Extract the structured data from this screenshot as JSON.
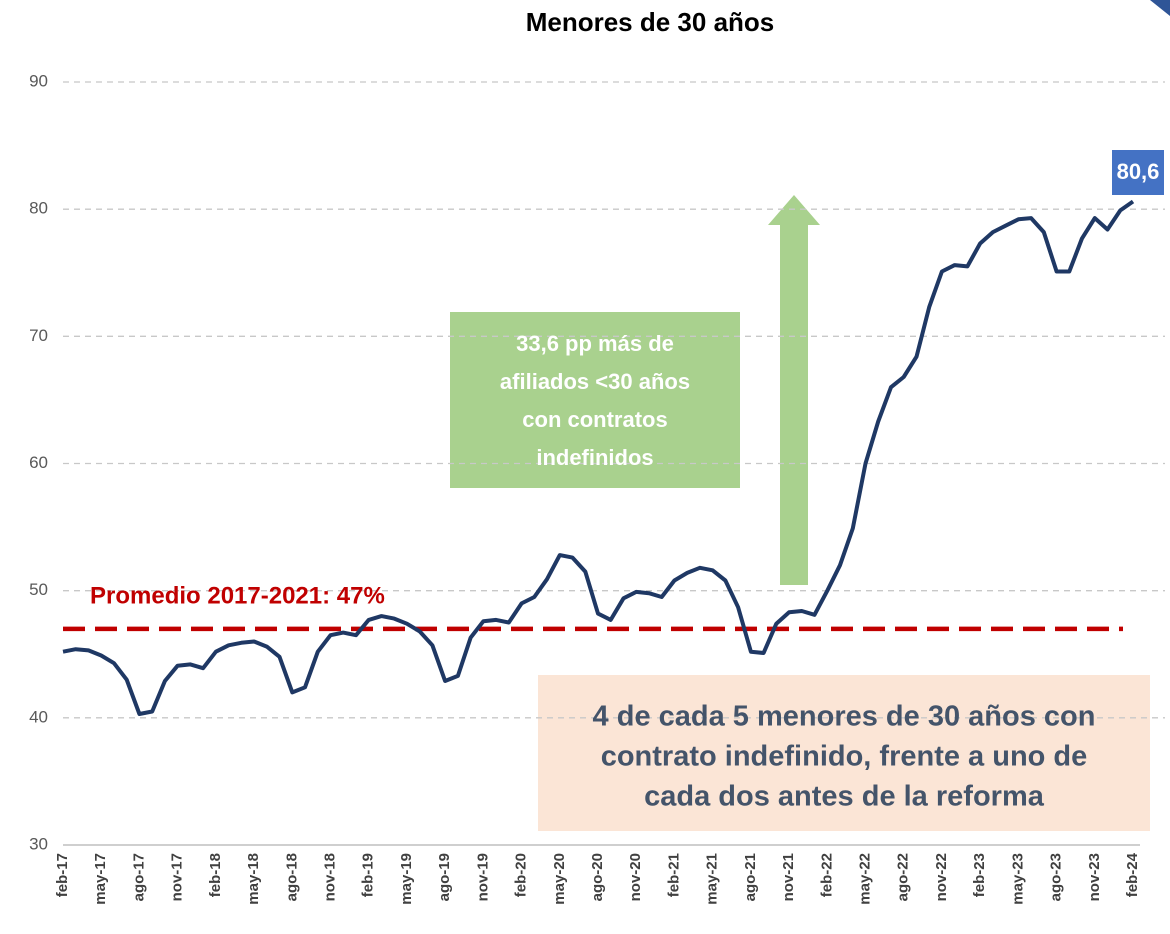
{
  "chart_data": {
    "type": "line",
    "title": "Menores de 30 años",
    "categories": [
      "feb-17",
      null,
      null,
      "may-17",
      null,
      null,
      "ago-17",
      null,
      null,
      "nov-17",
      null,
      null,
      "feb-18",
      null,
      null,
      "may-18",
      null,
      null,
      "ago-18",
      null,
      null,
      "nov-18",
      null,
      null,
      "feb-19",
      null,
      null,
      "may-19",
      null,
      null,
      "ago-19",
      null,
      null,
      "nov-19",
      null,
      null,
      "feb-20",
      null,
      null,
      "may-20",
      null,
      null,
      "ago-20",
      null,
      null,
      "nov-20",
      null,
      null,
      "feb-21",
      null,
      null,
      "may-21",
      null,
      null,
      "ago-21",
      null,
      null,
      "nov-21",
      null,
      null,
      "feb-22",
      null,
      null,
      "may-22",
      null,
      null,
      "ago-22",
      null,
      null,
      "nov-22",
      null,
      null,
      "feb-23",
      null,
      null,
      "may-23",
      null,
      null,
      "ago-23",
      null,
      null,
      "nov-23",
      null,
      null,
      "feb-24"
    ],
    "series": [
      {
        "color": "#1f3864",
        "values": [
          45.2,
          45.4,
          45.3,
          44.9,
          44.3,
          43.0,
          40.3,
          40.5,
          42.9,
          44.1,
          44.2,
          43.9,
          45.2,
          45.7,
          45.9,
          46.0,
          45.6,
          44.8,
          42.0,
          42.4,
          45.2,
          46.5,
          46.7,
          46.5,
          47.7,
          48.0,
          47.8,
          47.4,
          46.8,
          45.7,
          42.9,
          43.3,
          46.3,
          47.6,
          47.7,
          47.5,
          49.0,
          49.5,
          50.9,
          52.8,
          52.6,
          51.5,
          48.2,
          47.7,
          49.4,
          49.9,
          49.8,
          49.5,
          50.8,
          51.4,
          51.8,
          51.6,
          50.8,
          48.7,
          45.2,
          45.1,
          47.4,
          48.3,
          48.4,
          48.1,
          50.0,
          52.0,
          54.9,
          60.0,
          63.3,
          66.0,
          66.8,
          68.4,
          72.3,
          75.1,
          75.6,
          75.5,
          77.3,
          78.2,
          78.7,
          79.2,
          79.3,
          78.2,
          75.1,
          75.1,
          77.7,
          79.3,
          78.4,
          79.9,
          80.6
        ],
        "value_labels": [
          null,
          null,
          null,
          null,
          null,
          null,
          null,
          null,
          null,
          null,
          null,
          null,
          null,
          null,
          null,
          null,
          null,
          null,
          null,
          null,
          null,
          null,
          null,
          null,
          null,
          null,
          null,
          null,
          null,
          null,
          null,
          null,
          null,
          null,
          null,
          null,
          null,
          null,
          null,
          null,
          null,
          null,
          null,
          null,
          null,
          null,
          null,
          null,
          null,
          null,
          null,
          null,
          null,
          null,
          null,
          null,
          null,
          null,
          null,
          null,
          null,
          null,
          null,
          null,
          null,
          null,
          null,
          null,
          null,
          null,
          null,
          null,
          null,
          null,
          null,
          null,
          null,
          null,
          null,
          null,
          null,
          null,
          null,
          null,
          "80,6"
        ]
      }
    ],
    "ylim": [
      30,
      90
    ],
    "yticks": [
      30,
      40,
      50,
      60,
      70,
      80,
      90
    ],
    "grid": true,
    "reference_line": {
      "value": 47,
      "label": "Promedio 2017-2021: 47%",
      "color": "#c00000"
    },
    "annotations": [
      {
        "lines": [
          "33,6 pp más de",
          "afiliados <30 años",
          "con contratos",
          "indefinidos"
        ]
      },
      {
        "lines": [
          "4 de cada 5 menores de 30 años con",
          "contrato indefinido, frente a uno de",
          "cada dos antes de la reforma"
        ]
      }
    ]
  }
}
